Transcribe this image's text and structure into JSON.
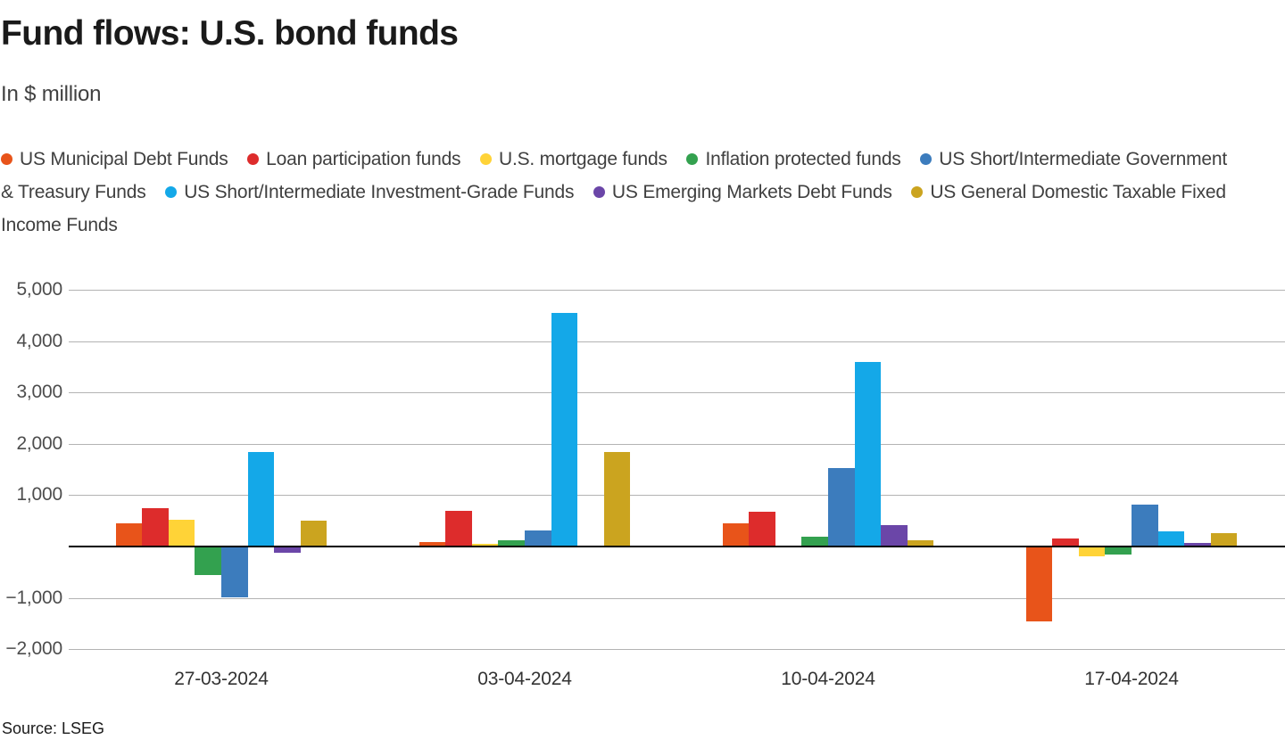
{
  "title": "Fund flows: U.S. bond funds",
  "subtitle": "In $ million",
  "source": "Source: LSEG",
  "colors": {
    "background": "#ffffff",
    "gridline": "#b3b3b3",
    "axis": "#000000",
    "title_text": "#1a1a1a",
    "body_text": "#404040",
    "tick_text": "#4d4d4d"
  },
  "chart_data": {
    "type": "bar",
    "title": "Fund flows: U.S. bond funds",
    "subtitle": "In $ million",
    "ylabel": "In $ million",
    "xlabel": "",
    "grid": true,
    "legend_position": "top",
    "ylim": [
      -2000,
      5000
    ],
    "yticks": [
      5000,
      4000,
      3000,
      2000,
      1000,
      -1000,
      -2000
    ],
    "categories": [
      "27-03-2024",
      "03-04-2024",
      "10-04-2024",
      "17-04-2024"
    ],
    "series": [
      {
        "name": "US Municipal Debt Funds",
        "color": "#E8541A",
        "values": [
          460,
          90,
          450,
          -1460
        ]
      },
      {
        "name": "Loan participation funds",
        "color": "#DD2C2C",
        "values": [
          750,
          700,
          670,
          160
        ]
      },
      {
        "name": "U.S. mortgage funds",
        "color": "#FFD337",
        "values": [
          520,
          60,
          0,
          -190
        ]
      },
      {
        "name": "Inflation protected funds",
        "color": "#33A14F",
        "values": [
          -560,
          130,
          200,
          -160
        ]
      },
      {
        "name": "US Short/Intermediate Government & Treasury Funds",
        "color": "#3C7CBD",
        "values": [
          -990,
          310,
          1520,
          810
        ]
      },
      {
        "name": "US Short/Intermediate Investment-Grade Funds",
        "color": "#14A8E8",
        "values": [
          1840,
          4550,
          3590,
          290
        ]
      },
      {
        "name": "US Emerging Markets Debt Funds",
        "color": "#6B46A8",
        "values": [
          -120,
          0,
          410,
          70
        ]
      },
      {
        "name": "US General Domestic Taxable Fixed Income Funds",
        "color": "#CBA41F",
        "values": [
          500,
          1840,
          130,
          260
        ]
      }
    ]
  }
}
